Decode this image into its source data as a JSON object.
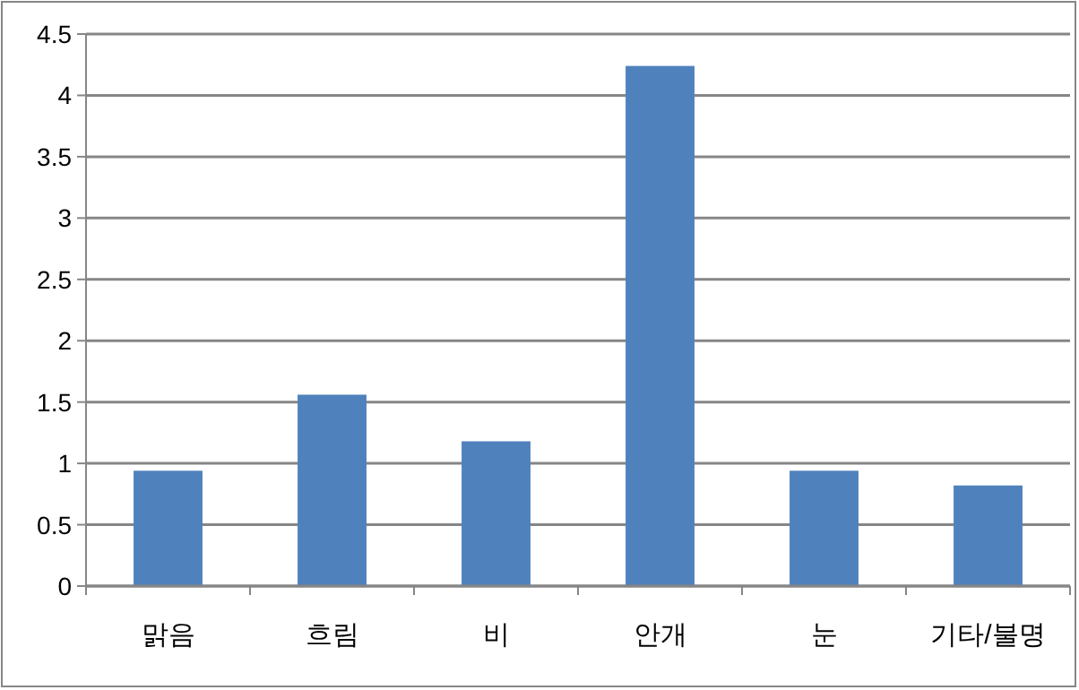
{
  "chart_data": {
    "type": "bar",
    "categories": [
      "맑음",
      "흐림",
      "비",
      "안개",
      "눈",
      "기타/불명"
    ],
    "values": [
      0.94,
      1.56,
      1.18,
      4.24,
      0.94,
      0.82
    ],
    "color": "#4f81bd",
    "ylim": [
      0,
      4.5
    ],
    "yticks": [
      0,
      0.5,
      1,
      1.5,
      2,
      2.5,
      3,
      3.5,
      4,
      4.5
    ],
    "grid": "y"
  }
}
